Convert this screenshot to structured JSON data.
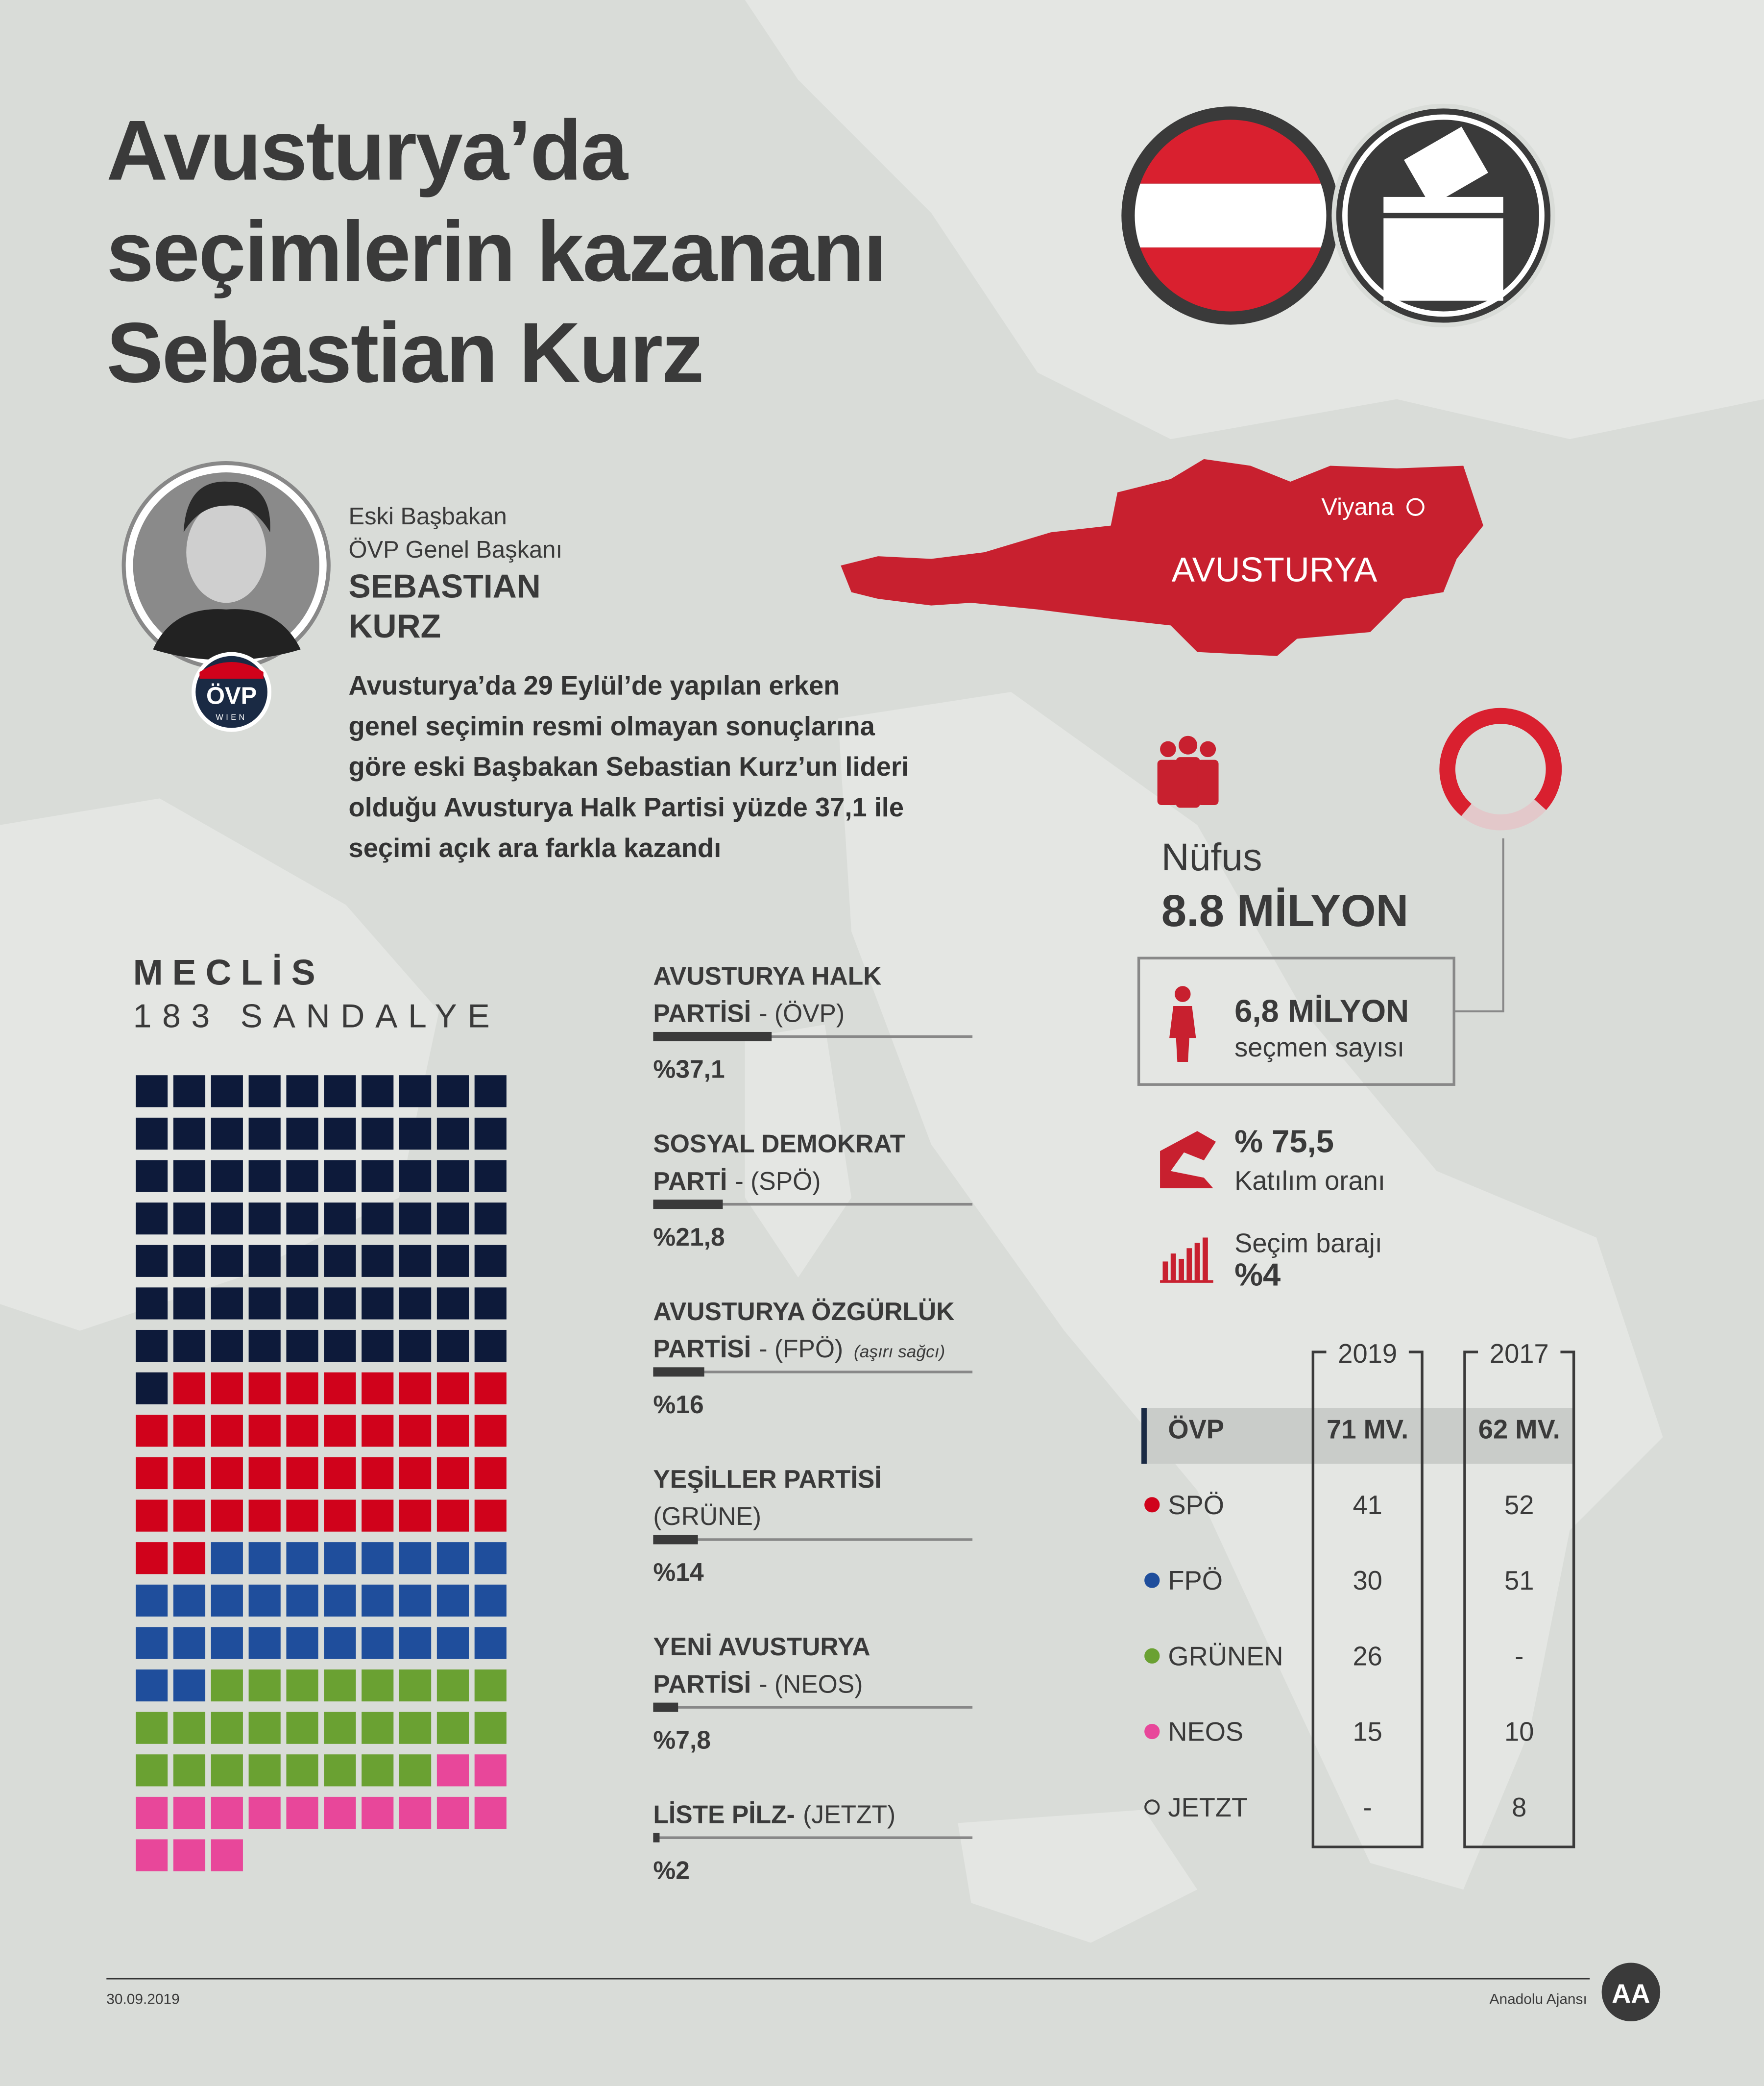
{
  "header": {
    "title": [
      "Avusturya’da",
      "seçimlerin kazananı",
      "Sebastian Kurz"
    ]
  },
  "profile": {
    "roles": [
      "Eski Başbakan",
      "ÖVP Genel Başkanı"
    ],
    "name": [
      "SEBASTIAN",
      "KURZ"
    ],
    "badge": "ÖVP",
    "badge_sub": "WIEN",
    "text": [
      "Avusturya’da 29 Eylül’de yapılan erken",
      "genel seçimin resmi olmayan sonuçlarına",
      "göre eski Başbakan Sebastian Kurz’un lideri",
      "olduğu Avusturya Halk Partisi yüzde 37,1 ile",
      "seçimi açık ara farkla kazandı"
    ]
  },
  "map": {
    "country": "AVUSTURYA",
    "capital": "Viyana"
  },
  "stats": {
    "population_label": "Nüfus",
    "population": "8.8 MİLYON",
    "voters": "6,8 MİLYON",
    "voters_label": "seçmen sayısı",
    "turnout": {
      "value": 75.5,
      "label": "% 75,5"
    },
    "turnout_label": "Katılım oranı",
    "threshold_label": "Seçim barajı",
    "threshold": "%4"
  },
  "parliament": {
    "title": "MECLİS",
    "subtitle": "183 SANDALYE"
  },
  "results": {
    "xlim": [
      0,
      100
    ],
    "parties": [
      {
        "lines": [
          {
            "b": "AVUSTURYA HALK"
          },
          {
            "b": "PARTİSİ",
            "n": "- (ÖVP)"
          }
        ],
        "share": {
          "value": 37.1,
          "label": "%37,1"
        }
      },
      {
        "lines": [
          {
            "b": "SOSYAL DEMOKRAT"
          },
          {
            "b": "PARTİ",
            "n": "- (SPÖ)"
          }
        ],
        "share": {
          "value": 21.8,
          "label": "%21,8"
        }
      },
      {
        "lines": [
          {
            "b": "AVUSTURYA ÖZGÜRLÜK"
          },
          {
            "b": "PARTİSİ",
            "n": "- (FPÖ)",
            "note": "(aşırı sağcı)"
          }
        ],
        "share": {
          "value": 16,
          "label": "%16"
        }
      },
      {
        "lines": [
          {
            "b": "YEŞİLLER PARTİSİ"
          },
          {
            "n": "(GRÜNE)"
          }
        ],
        "share": {
          "value": 14,
          "label": "%14"
        }
      },
      {
        "lines": [
          {
            "b": "YENİ AVUSTURYA"
          },
          {
            "b": "PARTİSİ",
            "n": "- (NEOS)"
          }
        ],
        "share": {
          "value": 7.8,
          "label": "%7,8"
        }
      },
      {
        "lines": [
          {
            "b": "LİSTE PİLZ-",
            "n": "(JETZT)"
          }
        ],
        "share": {
          "value": 2,
          "label": "%2"
        }
      }
    ]
  },
  "table": {
    "columns": [
      "2019",
      "2017"
    ],
    "rows": [
      {
        "party": "ÖVP",
        "color": "#0d1a3a",
        "seats_2019": {
          "value": 71,
          "label": "71 MV."
        },
        "seats_2017": {
          "value": 62,
          "label": "62 MV."
        }
      },
      {
        "party": "SPÖ",
        "color": "#d0021b",
        "seats_2019": 41,
        "seats_2017": 52
      },
      {
        "party": "FPÖ",
        "color": "#1f4e9c",
        "seats_2019": 30,
        "seats_2017": 51
      },
      {
        "party": "GRÜNEN",
        "color": "#6aa132",
        "seats_2019": 26,
        "seats_2017": "-"
      },
      {
        "party": "NEOS",
        "color": "#e8479a",
        "seats_2019": 15,
        "seats_2017": 10
      },
      {
        "party": "JETZT",
        "color": "none",
        "seats_2019": "-",
        "seats_2017": 8
      }
    ]
  },
  "footer": {
    "date": "30.09.2019",
    "source": "Anadolu Ajansı",
    "logo": "AA"
  }
}
